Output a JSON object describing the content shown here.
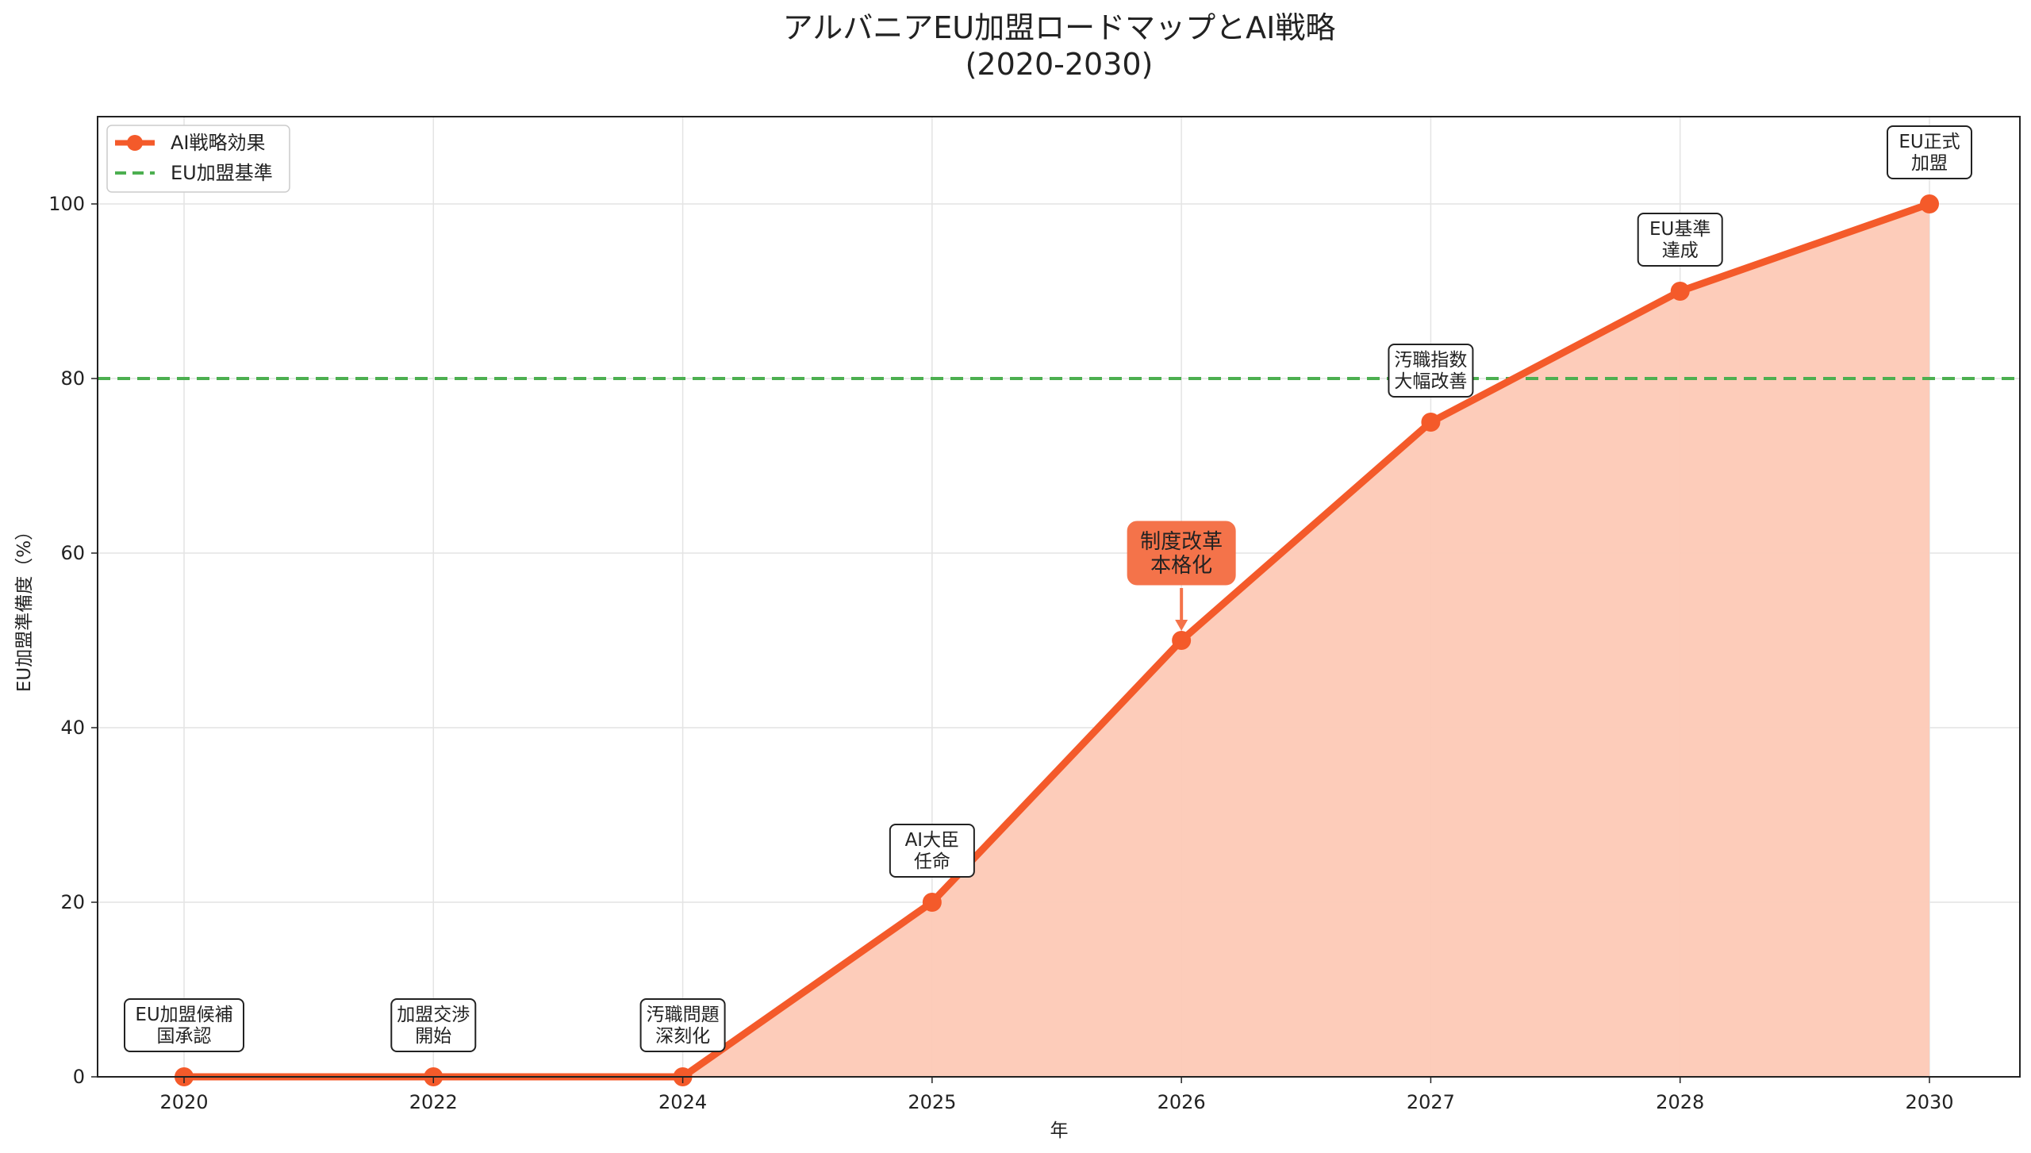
{
  "chart_data": {
    "type": "line",
    "title": [
      "アルバニアEU加盟ロードマップとAI戦略",
      "(2020-2030)"
    ],
    "xlabel": "年",
    "ylabel": "EU加盟準備度（%）",
    "categories": [
      "2020",
      "2022",
      "2024",
      "2025",
      "2026",
      "2027",
      "2028",
      "2030"
    ],
    "ylim": [
      0,
      110
    ],
    "yticks": [
      0,
      20,
      40,
      60,
      80,
      100
    ],
    "grid": true,
    "legend_position": "top-left",
    "series": [
      {
        "name": "AI戦略効果",
        "values": [
          0,
          0,
          0,
          20,
          50,
          75,
          90,
          100
        ],
        "color": "#f45a2a",
        "fill": "#fdc9b6"
      }
    ],
    "reference_line": {
      "name": "EU加盟基準",
      "value": 80,
      "color": "#4caf50",
      "style": "dashed"
    },
    "annotations": [
      {
        "index": 0,
        "lines": [
          "EU加盟候補",
          "国承認"
        ],
        "highlight": false
      },
      {
        "index": 1,
        "lines": [
          "加盟交渉",
          "開始"
        ],
        "highlight": false
      },
      {
        "index": 2,
        "lines": [
          "汚職問題",
          "深刻化"
        ],
        "highlight": false
      },
      {
        "index": 3,
        "lines": [
          "AI大臣",
          "任命"
        ],
        "highlight": false
      },
      {
        "index": 4,
        "lines": [
          "制度改革",
          "本格化"
        ],
        "highlight": true,
        "color": "#f4734a"
      },
      {
        "index": 5,
        "lines": [
          "汚職指数",
          "大幅改善"
        ],
        "highlight": false
      },
      {
        "index": 6,
        "lines": [
          "EU基準",
          "達成"
        ],
        "highlight": false
      },
      {
        "index": 7,
        "lines": [
          "EU正式",
          "加盟"
        ],
        "highlight": false
      }
    ]
  }
}
